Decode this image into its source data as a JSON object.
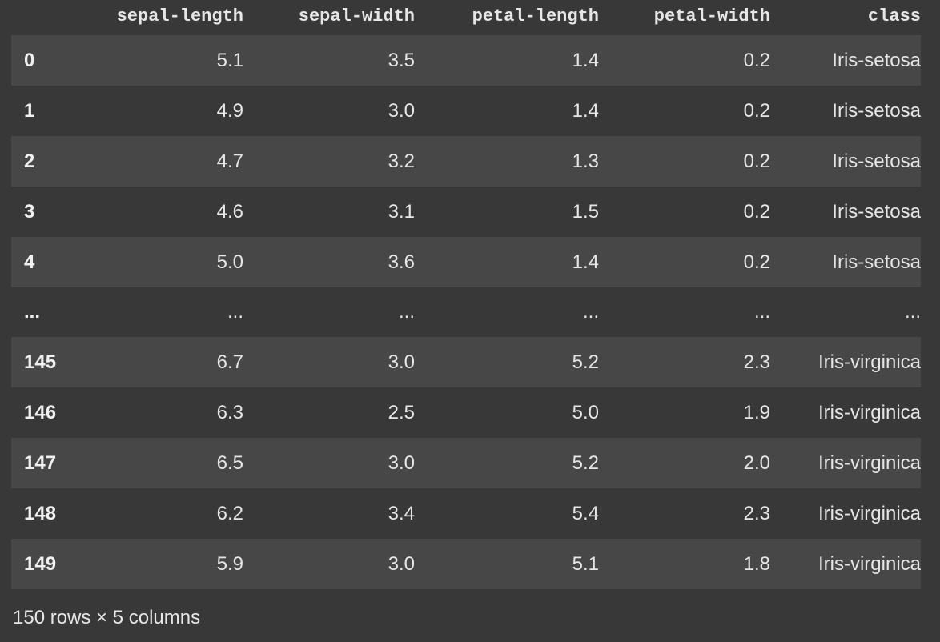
{
  "table": {
    "index_header": "",
    "columns": [
      "sepal-length",
      "sepal-width",
      "petal-length",
      "petal-width",
      "class"
    ],
    "rows": [
      {
        "index": "0",
        "cells": [
          "5.1",
          "3.5",
          "1.4",
          "0.2",
          "Iris-setosa"
        ]
      },
      {
        "index": "1",
        "cells": [
          "4.9",
          "3.0",
          "1.4",
          "0.2",
          "Iris-setosa"
        ]
      },
      {
        "index": "2",
        "cells": [
          "4.7",
          "3.2",
          "1.3",
          "0.2",
          "Iris-setosa"
        ]
      },
      {
        "index": "3",
        "cells": [
          "4.6",
          "3.1",
          "1.5",
          "0.2",
          "Iris-setosa"
        ]
      },
      {
        "index": "4",
        "cells": [
          "5.0",
          "3.6",
          "1.4",
          "0.2",
          "Iris-setosa"
        ]
      },
      {
        "index": "...",
        "cells": [
          "...",
          "...",
          "...",
          "...",
          "..."
        ]
      },
      {
        "index": "145",
        "cells": [
          "6.7",
          "3.0",
          "5.2",
          "2.3",
          "Iris-virginica"
        ]
      },
      {
        "index": "146",
        "cells": [
          "6.3",
          "2.5",
          "5.0",
          "1.9",
          "Iris-virginica"
        ]
      },
      {
        "index": "147",
        "cells": [
          "6.5",
          "3.0",
          "5.2",
          "2.0",
          "Iris-virginica"
        ]
      },
      {
        "index": "148",
        "cells": [
          "6.2",
          "3.4",
          "5.4",
          "2.3",
          "Iris-virginica"
        ]
      },
      {
        "index": "149",
        "cells": [
          "5.9",
          "3.0",
          "5.1",
          "1.8",
          "Iris-virginica"
        ]
      }
    ]
  },
  "footer": {
    "summary": "150 rows × 5 columns"
  },
  "colors": {
    "background": "#383838",
    "row_stripe": "#474747",
    "text": "#e6e6e6"
  }
}
